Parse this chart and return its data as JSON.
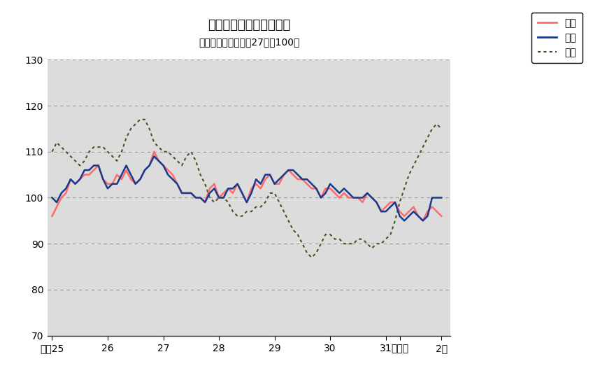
{
  "title": "鳥取県鉱工業指数の推移",
  "subtitle": "（季節調整済、平成27年＝100）",
  "legend_labels": [
    "生産",
    "出荷",
    "在庫"
  ],
  "prod_color": "#FF6B6B",
  "ship_color": "#1A3A8C",
  "inv_color": "#4B5320",
  "ylim": [
    70,
    130
  ],
  "yticks": [
    70,
    80,
    90,
    100,
    110,
    120,
    130
  ],
  "xtick_labels": [
    "平成25",
    "26",
    "27",
    "28",
    "29",
    "30",
    "31",
    "令和元",
    "2年"
  ],
  "xtick_positions": [
    0,
    12,
    24,
    36,
    48,
    60,
    72,
    75,
    84
  ],
  "bg_color": "#DCDCDC",
  "production": [
    96,
    98,
    100,
    101,
    104,
    103,
    104,
    105,
    105,
    106,
    107,
    104,
    103,
    103,
    105,
    104,
    106,
    104,
    103,
    104,
    106,
    107,
    110,
    108,
    107,
    106,
    105,
    103,
    101,
    101,
    101,
    100,
    100,
    99,
    102,
    103,
    100,
    101,
    102,
    101,
    103,
    101,
    99,
    102,
    103,
    102,
    104,
    105,
    103,
    103,
    105,
    106,
    105,
    104,
    104,
    103,
    102,
    102,
    100,
    102,
    102,
    101,
    100,
    101,
    100,
    100,
    100,
    99,
    101,
    100,
    99,
    97,
    98,
    99,
    99,
    97,
    96,
    97,
    98,
    96,
    95,
    97,
    98,
    97,
    96
  ],
  "shipment": [
    100,
    99,
    101,
    102,
    104,
    103,
    104,
    106,
    106,
    107,
    107,
    104,
    102,
    103,
    103,
    105,
    107,
    105,
    103,
    104,
    106,
    107,
    109,
    108,
    107,
    105,
    104,
    103,
    101,
    101,
    101,
    100,
    100,
    99,
    101,
    102,
    100,
    100,
    102,
    102,
    103,
    101,
    99,
    101,
    104,
    103,
    105,
    105,
    103,
    104,
    105,
    106,
    106,
    105,
    104,
    104,
    103,
    102,
    100,
    101,
    103,
    102,
    101,
    102,
    101,
    100,
    100,
    100,
    101,
    100,
    99,
    97,
    97,
    98,
    99,
    96,
    95,
    96,
    97,
    96,
    95,
    96,
    100,
    100,
    100
  ],
  "inventory": [
    110,
    112,
    111,
    110,
    109,
    108,
    107,
    108,
    110,
    111,
    111,
    111,
    110,
    109,
    108,
    110,
    113,
    115,
    116,
    117,
    117,
    115,
    112,
    111,
    110,
    110,
    109,
    108,
    107,
    109,
    110,
    108,
    105,
    103,
    100,
    99,
    100,
    100,
    99,
    97,
    96,
    96,
    97,
    97,
    98,
    98,
    99,
    101,
    101,
    99,
    97,
    95,
    93,
    92,
    90,
    88,
    87,
    88,
    90,
    92,
    92,
    91,
    91,
    90,
    90,
    90,
    91,
    91,
    90,
    89,
    90,
    90,
    91,
    92,
    95,
    99,
    102,
    105,
    107,
    109,
    111,
    113,
    115,
    116,
    115
  ]
}
